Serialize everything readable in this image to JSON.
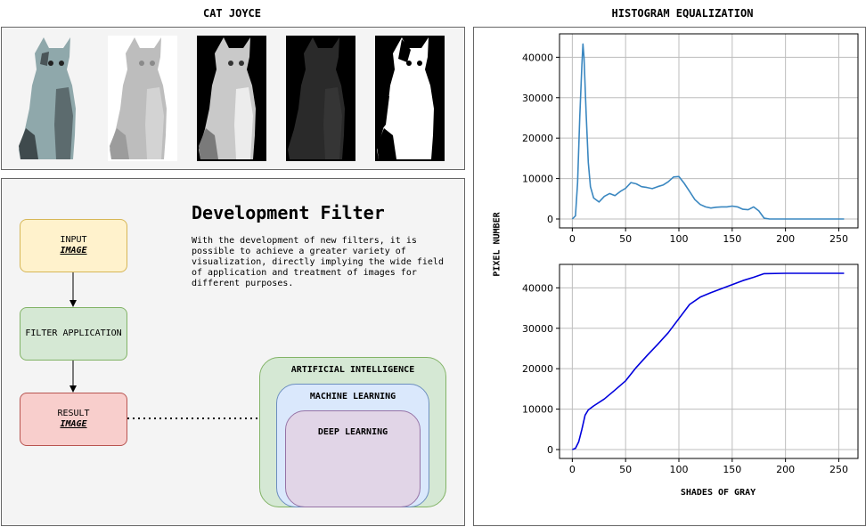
{
  "left_title": "CAT JOYCE",
  "right_title": "HISTOGRAM EQUALIZATION",
  "diagram": {
    "heading": "Development Filter",
    "description": "With the development of new filters, it is possible to achieve a greater variety of visualization, directly implying the wide field of application and treatment of images for different purposes.",
    "input_line1": "INPUT",
    "input_line2": "IMAGE",
    "filter_label": "FILTER APPLICATION",
    "result_line1": "RESULT",
    "result_line2": "IMAGE",
    "ai_label": "ARTIFICIAL INTELLIGENCE",
    "ml_label": "MACHINE LEARNING",
    "dl_label": "DEEP LEARNING"
  },
  "chart_data": [
    {
      "type": "line",
      "title": "",
      "xlabel": "",
      "ylabel": "PIXEL NUMBER",
      "xlim": [
        -12,
        268
      ],
      "ylim": [
        -2200,
        45800
      ],
      "xticks": [
        0,
        50,
        100,
        150,
        200,
        250
      ],
      "yticks": [
        0,
        10000,
        20000,
        30000,
        40000
      ],
      "grid": true,
      "color": "#3a87c0",
      "x": [
        0,
        3,
        5,
        7,
        9,
        10,
        11,
        13,
        15,
        17,
        20,
        25,
        30,
        35,
        40,
        45,
        50,
        55,
        60,
        65,
        70,
        75,
        80,
        85,
        90,
        95,
        100,
        105,
        110,
        115,
        120,
        125,
        130,
        135,
        140,
        145,
        150,
        155,
        160,
        165,
        170,
        175,
        180,
        185,
        190,
        200,
        210,
        220,
        230,
        240,
        255
      ],
      "values": [
        0,
        800,
        9000,
        25000,
        38000,
        43300,
        40000,
        26000,
        14000,
        8000,
        5200,
        4200,
        5600,
        6300,
        5800,
        6800,
        7600,
        9000,
        8700,
        8000,
        7800,
        7500,
        8000,
        8400,
        9200,
        10400,
        10500,
        8800,
        6800,
        4800,
        3600,
        3000,
        2700,
        2900,
        3000,
        3000,
        3200,
        3000,
        2400,
        2300,
        3000,
        2000,
        200,
        0,
        0,
        0,
        0,
        0,
        0,
        0,
        0
      ]
    },
    {
      "type": "line",
      "title": "",
      "xlabel": "SHADES OF GRAY",
      "ylabel": "",
      "xlim": [
        -12,
        268
      ],
      "ylim": [
        -2200,
        45800
      ],
      "xticks": [
        0,
        50,
        100,
        150,
        200,
        250
      ],
      "yticks": [
        0,
        10000,
        20000,
        30000,
        40000
      ],
      "grid": true,
      "color": "#0000dd",
      "x": [
        0,
        3,
        6,
        9,
        12,
        15,
        20,
        30,
        40,
        50,
        60,
        70,
        80,
        90,
        100,
        110,
        120,
        130,
        140,
        150,
        160,
        170,
        180,
        200,
        220,
        240,
        255
      ],
      "values": [
        0,
        300,
        1900,
        5000,
        8500,
        9800,
        10800,
        12500,
        14700,
        17000,
        20300,
        23200,
        26000,
        28900,
        32400,
        35900,
        37700,
        38800,
        39800,
        40800,
        41800,
        42600,
        43500,
        43600,
        43600,
        43600,
        43600
      ]
    }
  ],
  "colors": {
    "input": "#fff2cc",
    "input_border": "#d6b656",
    "filter": "#d5e8d4",
    "filter_border": "#82b366",
    "result": "#f8cecc",
    "result_border": "#b85450",
    "ai": "#d5e8d4",
    "ai_border": "#82b366",
    "ml": "#dae8fc",
    "ml_border": "#6c8ebf",
    "dl": "#e1d5e7",
    "dl_border": "#9673a6"
  }
}
